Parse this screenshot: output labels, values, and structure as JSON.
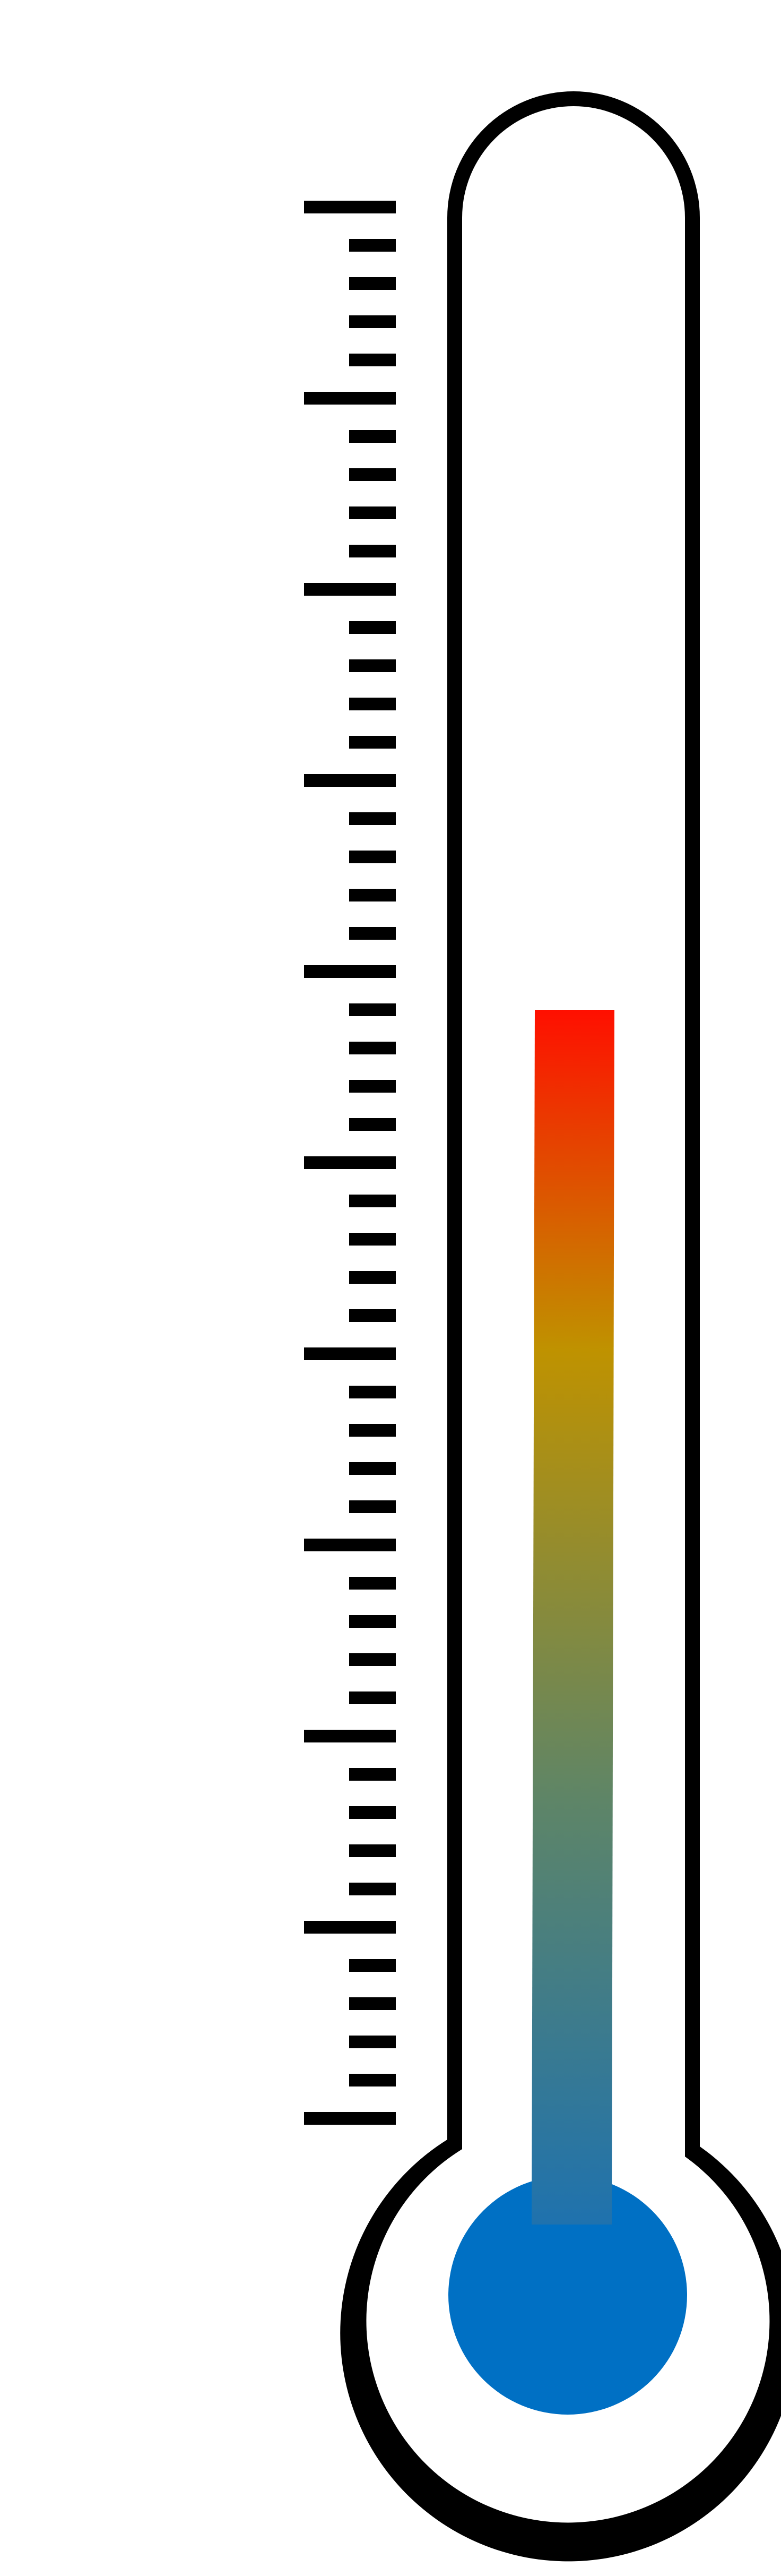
{
  "thermometer": {
    "fill_level": 0.58,
    "major_ticks": 10,
    "minor_ticks_per_major": 4,
    "colors": {
      "outline": "#000000",
      "tube_background": "#ffffff",
      "bulb_fill": "#0070c4",
      "gradient_bottom": "#1f72ae",
      "gradient_mid_low": "#5e8567",
      "gradient_mid": "#bf9200",
      "gradient_top": "#ff0f00"
    }
  }
}
